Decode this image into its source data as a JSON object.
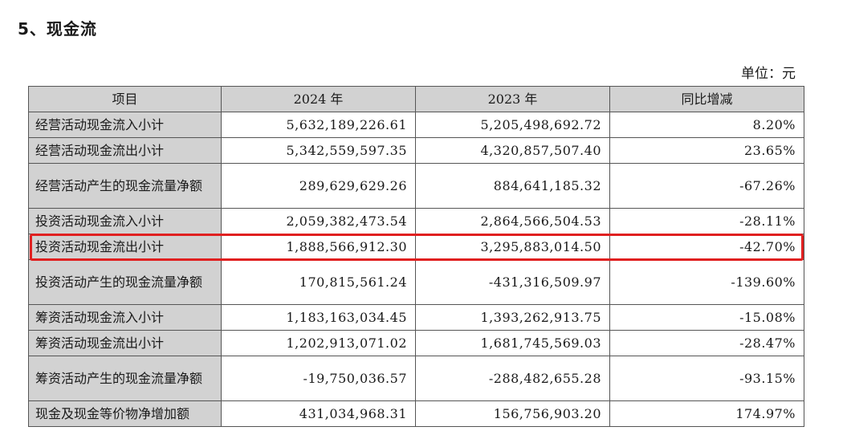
{
  "section_title": "5、现金流",
  "unit_label": "单位：元",
  "highlight_color": "#e02020",
  "table": {
    "headers": [
      "项目",
      "2024 年",
      "2023 年",
      "同比增减"
    ],
    "rows": [
      {
        "item": "经营活动现金流入小计",
        "y2024": "5,632,189,226.61",
        "y2023": "5,205,498,692.72",
        "change": "8.20%"
      },
      {
        "item": "经营活动现金流出小计",
        "y2024": "5,342,559,597.35",
        "y2023": "4,320,857,507.40",
        "change": "23.65%"
      },
      {
        "item": "经营活动产生的现金流量净额",
        "y2024": "289,629,629.26",
        "y2023": "884,641,185.32",
        "change": "-67.26%"
      },
      {
        "item": "投资活动现金流入小计",
        "y2024": "2,059,382,473.54",
        "y2023": "2,864,566,504.53",
        "change": "-28.11%"
      },
      {
        "item": "投资活动现金流出小计",
        "y2024": "1,888,566,912.30",
        "y2023": "3,295,883,014.50",
        "change": "-42.70%"
      },
      {
        "item": "投资活动产生的现金流量净额",
        "y2024": "170,815,561.24",
        "y2023": "-431,316,509.97",
        "change": "-139.60%"
      },
      {
        "item": "筹资活动现金流入小计",
        "y2024": "1,183,163,034.45",
        "y2023": "1,393,262,913.75",
        "change": "-15.08%"
      },
      {
        "item": "筹资活动现金流出小计",
        "y2024": "1,202,913,071.02",
        "y2023": "1,681,745,569.03",
        "change": "-28.47%"
      },
      {
        "item": "筹资活动产生的现金流量净额",
        "y2024": "-19,750,036.57",
        "y2023": "-288,482,655.28",
        "change": "-93.15%"
      },
      {
        "item": "现金及现金等价物净增加额",
        "y2024": "431,034,968.31",
        "y2023": "156,756,903.20",
        "change": "174.97%"
      }
    ]
  }
}
